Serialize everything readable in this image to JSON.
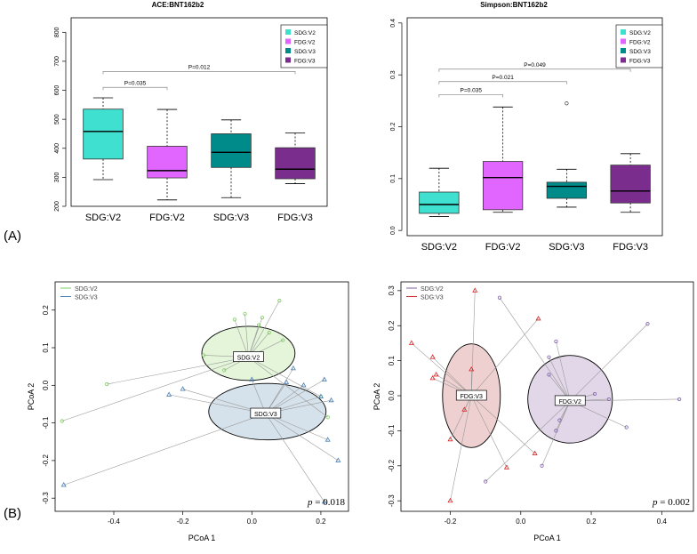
{
  "panel_labels": {
    "a": "(A)",
    "b": "(B)"
  },
  "chart_data": [
    {
      "type": "boxplot",
      "title": "ACE:BNT162b2",
      "categories": [
        "SDG:V2",
        "FDG:V2",
        "SDG:V3",
        "FDG:V3"
      ],
      "colors": [
        "#40e0d0",
        "#e066ff",
        "#008b8b",
        "#7b2d8e"
      ],
      "ylim": [
        200,
        850
      ],
      "yticks": [
        200,
        300,
        400,
        500,
        600,
        700,
        800
      ],
      "boxes": [
        {
          "min": 292,
          "q1": 363,
          "median": 458,
          "q3": 535,
          "max": 574,
          "outliers": []
        },
        {
          "min": 222,
          "q1": 298,
          "median": 323,
          "q3": 407,
          "max": 534,
          "outliers": []
        },
        {
          "min": 230,
          "q1": 334,
          "median": 386,
          "q3": 450,
          "max": 498,
          "outliers": []
        },
        {
          "min": 278,
          "q1": 295,
          "median": 328,
          "q3": 402,
          "max": 453,
          "outliers": []
        }
      ],
      "legend": [
        "SDG:V2",
        "FDG:V2",
        "SDG:V3",
        "FDG:V3"
      ],
      "comparisons": [
        {
          "from": 0,
          "to": 1,
          "label": "P=0.035",
          "y": 610
        },
        {
          "from": 0,
          "to": 3,
          "label": "P=0.012",
          "y": 665
        }
      ]
    },
    {
      "type": "boxplot",
      "title": "Simpson:BNT162b2",
      "categories": [
        "SDG:V2",
        "FDG:V2",
        "SDG:V3",
        "FDG:V3"
      ],
      "colors": [
        "#40e0d0",
        "#e066ff",
        "#008b8b",
        "#7b2d8e"
      ],
      "ylim": [
        -0.01,
        0.41
      ],
      "yticks": [
        0.0,
        0.1,
        0.2,
        0.3,
        0.4
      ],
      "ytick_labels": [
        "0.0",
        "0.1",
        "0.2",
        "0.3",
        "0.4"
      ],
      "boxes": [
        {
          "min": 0.027,
          "q1": 0.033,
          "median": 0.05,
          "q3": 0.074,
          "max": 0.12,
          "outliers": []
        },
        {
          "min": 0.035,
          "q1": 0.04,
          "median": 0.102,
          "q3": 0.133,
          "max": 0.238,
          "outliers": []
        },
        {
          "min": 0.045,
          "q1": 0.062,
          "median": 0.085,
          "q3": 0.093,
          "max": 0.118,
          "outliers": [
            0.245
          ]
        },
        {
          "min": 0.035,
          "q1": 0.053,
          "median": 0.076,
          "q3": 0.126,
          "max": 0.148,
          "outliers": []
        }
      ],
      "legend": [
        "SDG:V2",
        "FDG:V2",
        "SDG:V3",
        "FDG:V3"
      ],
      "comparisons": [
        {
          "from": 0,
          "to": 1,
          "label": "P=0.035",
          "y": 0.262
        },
        {
          "from": 0,
          "to": 2,
          "label": "P=0.021",
          "y": 0.287
        },
        {
          "from": 0,
          "to": 3,
          "label": "P=0.049",
          "y": 0.311
        }
      ]
    },
    {
      "type": "scatter",
      "subtype": "pcoa",
      "xlabel": "PCoA 1",
      "ylabel": "PCoA 2",
      "xlim": [
        -0.57,
        0.28
      ],
      "ylim": [
        -0.335,
        0.275
      ],
      "xticks": [
        -0.4,
        -0.2,
        0.0,
        0.2
      ],
      "xtick_labels": [
        "-0.4",
        "-0.2",
        "0.0",
        "0.2"
      ],
      "yticks": [
        -0.3,
        -0.2,
        -0.1,
        0.0,
        0.1,
        0.2
      ],
      "ytick_labels": [
        "-0.3",
        "-0.2",
        "-0.1",
        "0.0",
        "0.1",
        "0.2"
      ],
      "pvalue": "= 0.018",
      "pvalue_symbol": "p",
      "legend": [
        "SDG:V2",
        "SDG:V3"
      ],
      "groups": [
        {
          "name": "SDG:V2",
          "color": "#7ccd5c",
          "fill": "#dff3d3",
          "marker": "circle",
          "centroid": [
            -0.01,
            0.075
          ],
          "ellipse": {
            "rx": 0.135,
            "ry": 0.072,
            "cx": -0.01,
            "cy": 0.085
          },
          "points": [
            [
              -0.55,
              -0.095
            ],
            [
              -0.42,
              0.003
            ],
            [
              -0.14,
              0.08
            ],
            [
              -0.08,
              0.04
            ],
            [
              -0.05,
              0.175
            ],
            [
              -0.02,
              0.19
            ],
            [
              0.02,
              0.16
            ],
            [
              0.03,
              0.18
            ],
            [
              0.05,
              0.14
            ],
            [
              0.08,
              0.225
            ],
            [
              0.09,
              0.12
            ],
            [
              0.2,
              -0.03
            ],
            [
              0.22,
              -0.085
            ]
          ]
        },
        {
          "name": "SDG:V3",
          "color": "#4a7fb5",
          "fill": "#cfdde8",
          "marker": "triangle",
          "centroid": [
            0.04,
            -0.075
          ],
          "ellipse": {
            "rx": 0.17,
            "ry": 0.075,
            "cx": 0.045,
            "cy": -0.07
          },
          "points": [
            [
              -0.545,
              -0.265
            ],
            [
              -0.24,
              -0.025
            ],
            [
              -0.2,
              -0.01
            ],
            [
              0.0,
              0.015
            ],
            [
              0.1,
              0.008
            ],
            [
              0.12,
              0.045
            ],
            [
              0.15,
              0.0
            ],
            [
              0.2,
              -0.03
            ],
            [
              0.21,
              0.015
            ],
            [
              0.22,
              -0.145
            ],
            [
              0.25,
              -0.2
            ],
            [
              0.21,
              -0.31
            ],
            [
              0.23,
              -0.04
            ]
          ]
        }
      ]
    },
    {
      "type": "scatter",
      "subtype": "pcoa",
      "xlabel": "PCoA 1",
      "ylabel": "PCoA 2",
      "xlim": [
        -0.34,
        0.49
      ],
      "ylim": [
        -0.33,
        0.325
      ],
      "xticks": [
        -0.2,
        0.0,
        0.2,
        0.4
      ],
      "xtick_labels": [
        "-0.2",
        "0.0",
        "0.2",
        "0.4"
      ],
      "yticks": [
        -0.3,
        -0.2,
        -0.1,
        0.0,
        0.1,
        0.2,
        0.3
      ],
      "ytick_labels": [
        "-0.3",
        "-0.2",
        "-0.1",
        "0.0",
        "0.1",
        "0.2",
        "0.3"
      ],
      "pvalue": "= 0.002",
      "pvalue_symbol": "p",
      "legend": [
        "SDG:V2",
        "SDG:V3"
      ],
      "groups": [
        {
          "name": "FDG:V2",
          "legend_name": "SDG:V2",
          "color": "#7b5ea7",
          "fill": "#ddd0e4",
          "marker": "circle",
          "centroid": [
            0.14,
            -0.015
          ],
          "ellipse": {
            "rx": 0.12,
            "ry": 0.125,
            "cx": 0.14,
            "cy": -0.01
          },
          "points": [
            [
              -0.1,
              -0.245
            ],
            [
              -0.06,
              0.28
            ],
            [
              0.06,
              -0.2
            ],
            [
              0.08,
              0.11
            ],
            [
              0.08,
              0.06
            ],
            [
              0.1,
              0.155
            ],
            [
              0.1,
              -0.1
            ],
            [
              0.11,
              -0.07
            ],
            [
              0.21,
              0.005
            ],
            [
              0.25,
              -0.01
            ],
            [
              0.3,
              -0.09
            ],
            [
              0.36,
              0.205
            ],
            [
              0.45,
              -0.01
            ]
          ]
        },
        {
          "name": "FDG:V3",
          "legend_name": "SDG:V3",
          "color": "#d62728",
          "fill": "#ecc8c8",
          "marker": "triangle",
          "centroid": [
            -0.14,
            0.0
          ],
          "ellipse": {
            "rx": 0.082,
            "ry": 0.148,
            "cx": -0.14,
            "cy": 0.0
          },
          "points": [
            [
              -0.31,
              0.15
            ],
            [
              -0.25,
              0.11
            ],
            [
              -0.24,
              0.06
            ],
            [
              -0.2,
              -0.125
            ],
            [
              -0.2,
              -0.3
            ],
            [
              -0.16,
              0.005
            ],
            [
              -0.16,
              -0.04
            ],
            [
              -0.14,
              0.075
            ],
            [
              -0.13,
              0.3
            ],
            [
              -0.04,
              -0.205
            ],
            [
              0.04,
              -0.165
            ],
            [
              0.05,
              0.22
            ],
            [
              -0.25,
              0.05
            ]
          ]
        }
      ]
    }
  ]
}
